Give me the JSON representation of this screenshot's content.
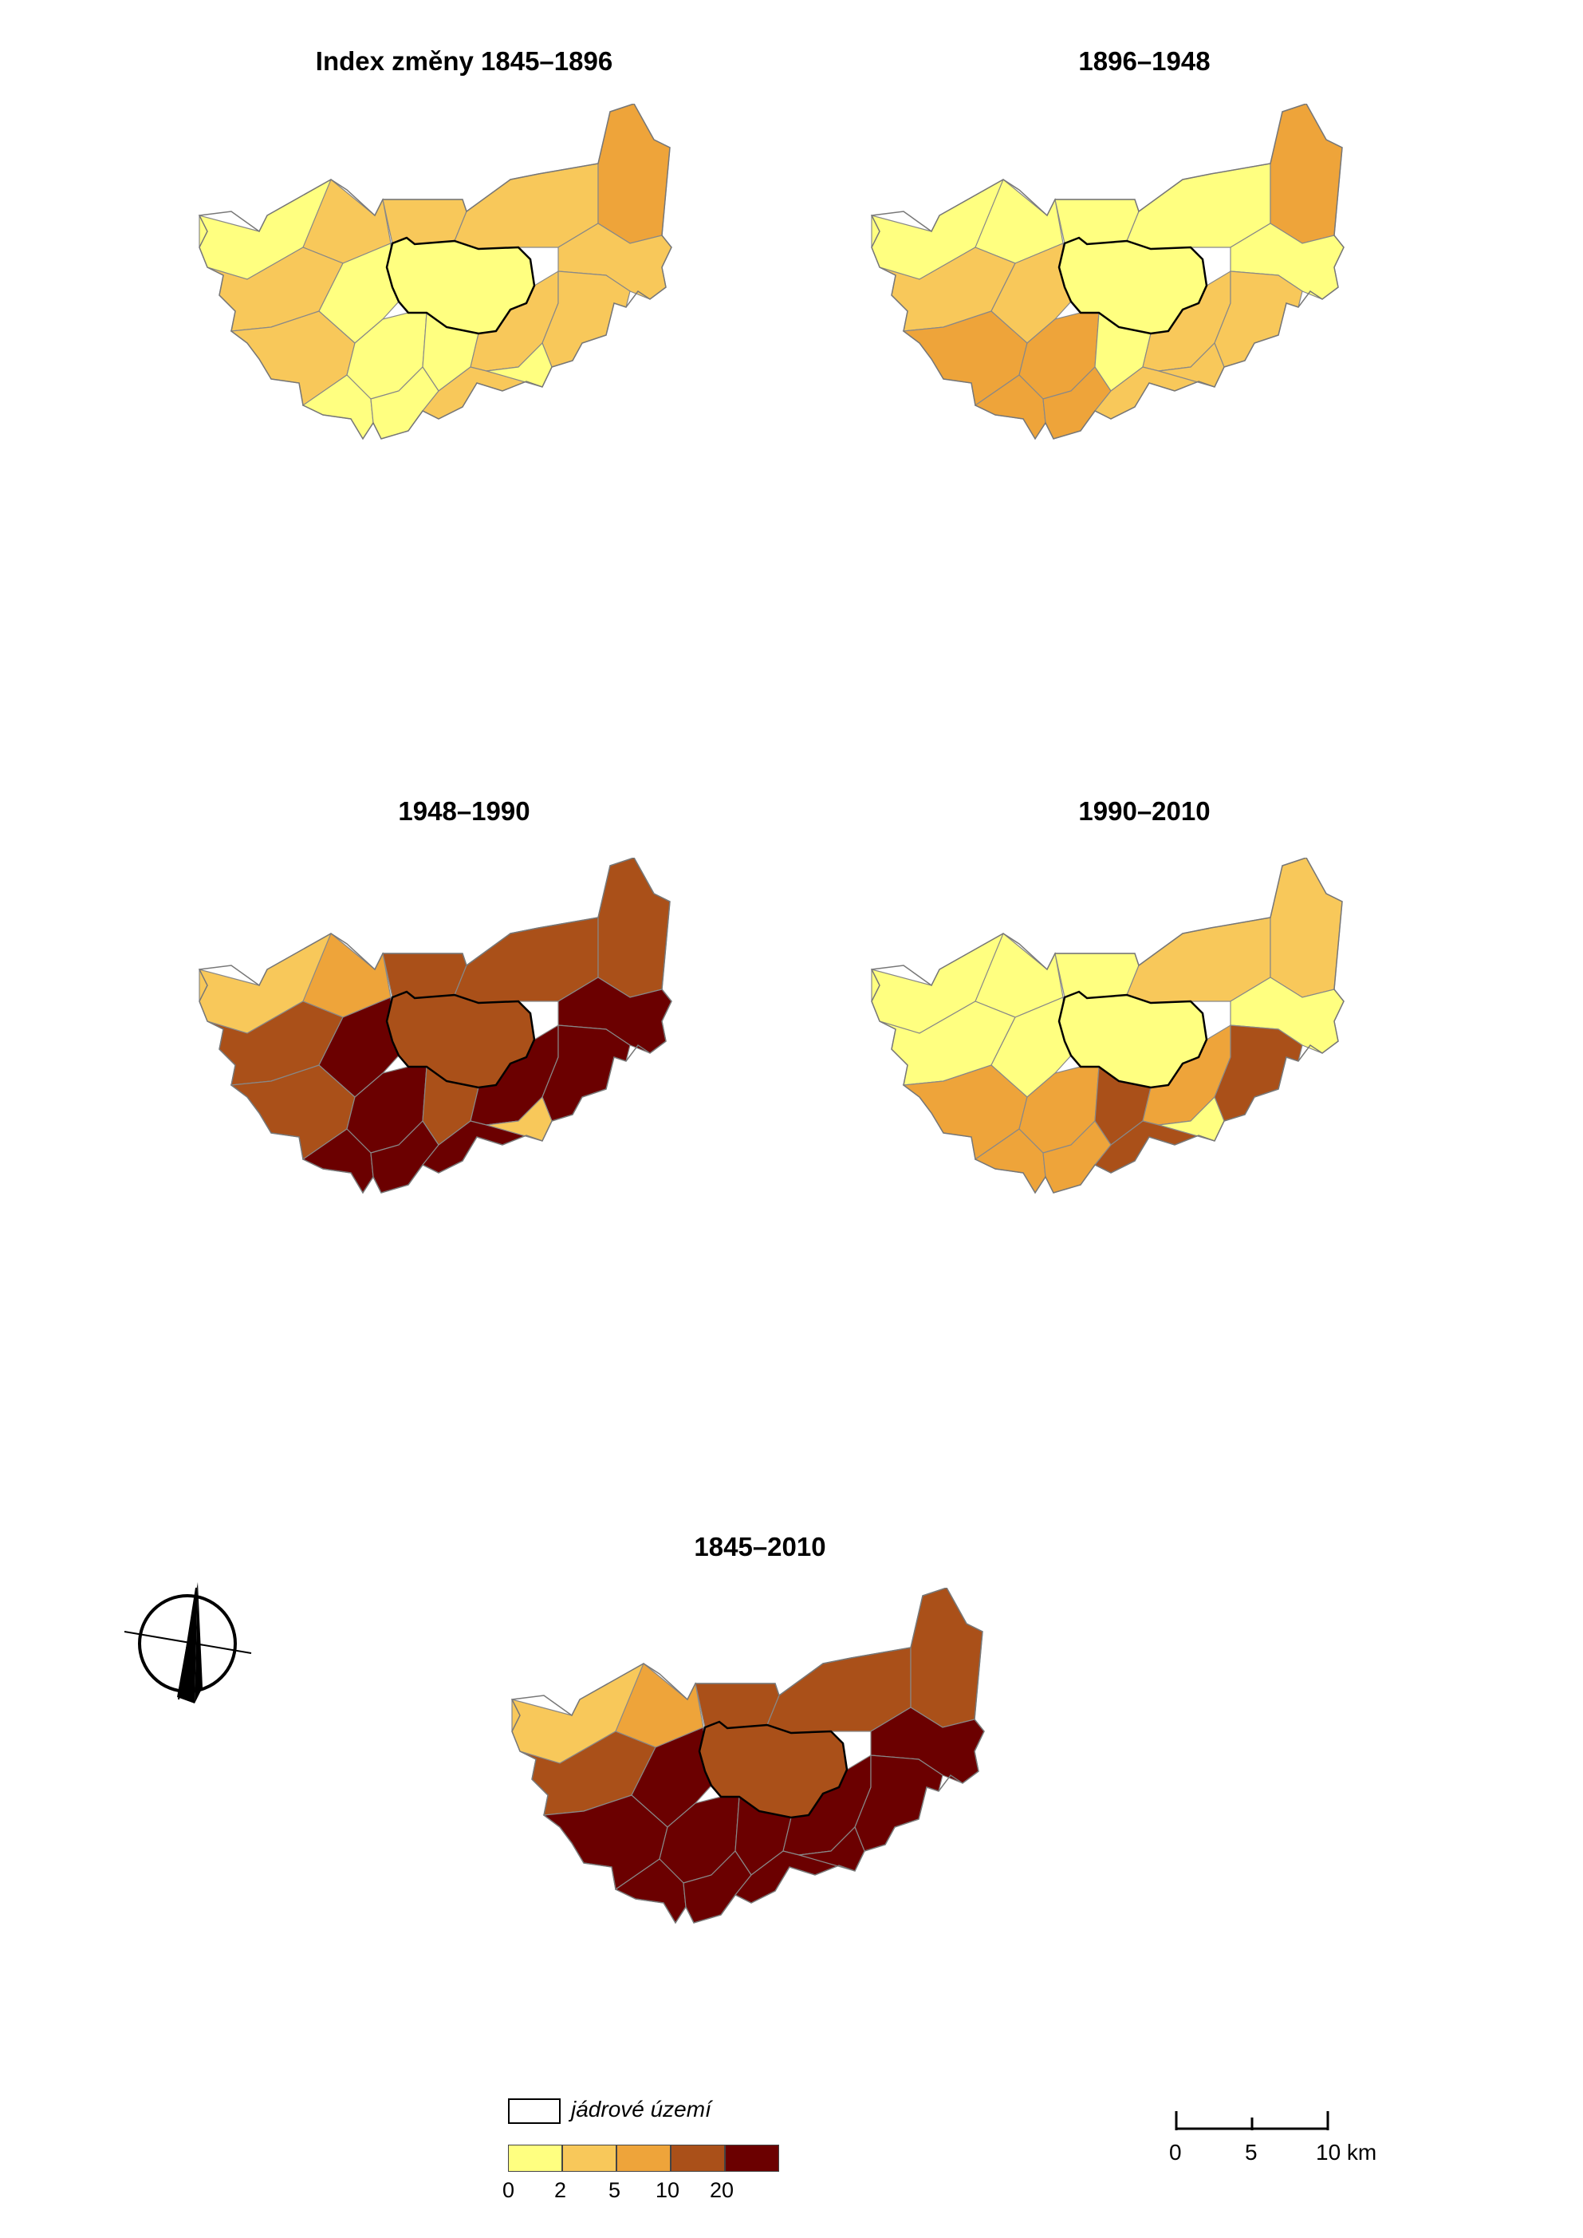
{
  "maps": [
    {
      "title": "Index změny 1845–1896",
      "period": "1845–1896"
    },
    {
      "title": "1896–1948",
      "period": "1896–1948"
    },
    {
      "title": "1948–1990",
      "period": "1948–1990"
    },
    {
      "title": "1990–2010",
      "period": "1990–2010"
    },
    {
      "title": "1845–2010",
      "period": "1845–2010"
    }
  ],
  "legend": {
    "core_label": "jádrové území",
    "classes": [
      {
        "from": 0,
        "to": 2,
        "color": "#ffff80"
      },
      {
        "from": 2,
        "to": 5,
        "color": "#f8c85a"
      },
      {
        "from": 5,
        "to": 10,
        "color": "#eea43a"
      },
      {
        "from": 10,
        "to": 20,
        "color": "#aa5019"
      },
      {
        "from": 20,
        "to": null,
        "color": "#6b0000"
      }
    ],
    "tick_labels": [
      "0",
      "2",
      "5",
      "10",
      "20"
    ]
  },
  "scale_bar": {
    "labels": [
      "0",
      "5",
      "10 km"
    ]
  },
  "north_arrow": {
    "icon": "north-arrow-icon"
  }
}
